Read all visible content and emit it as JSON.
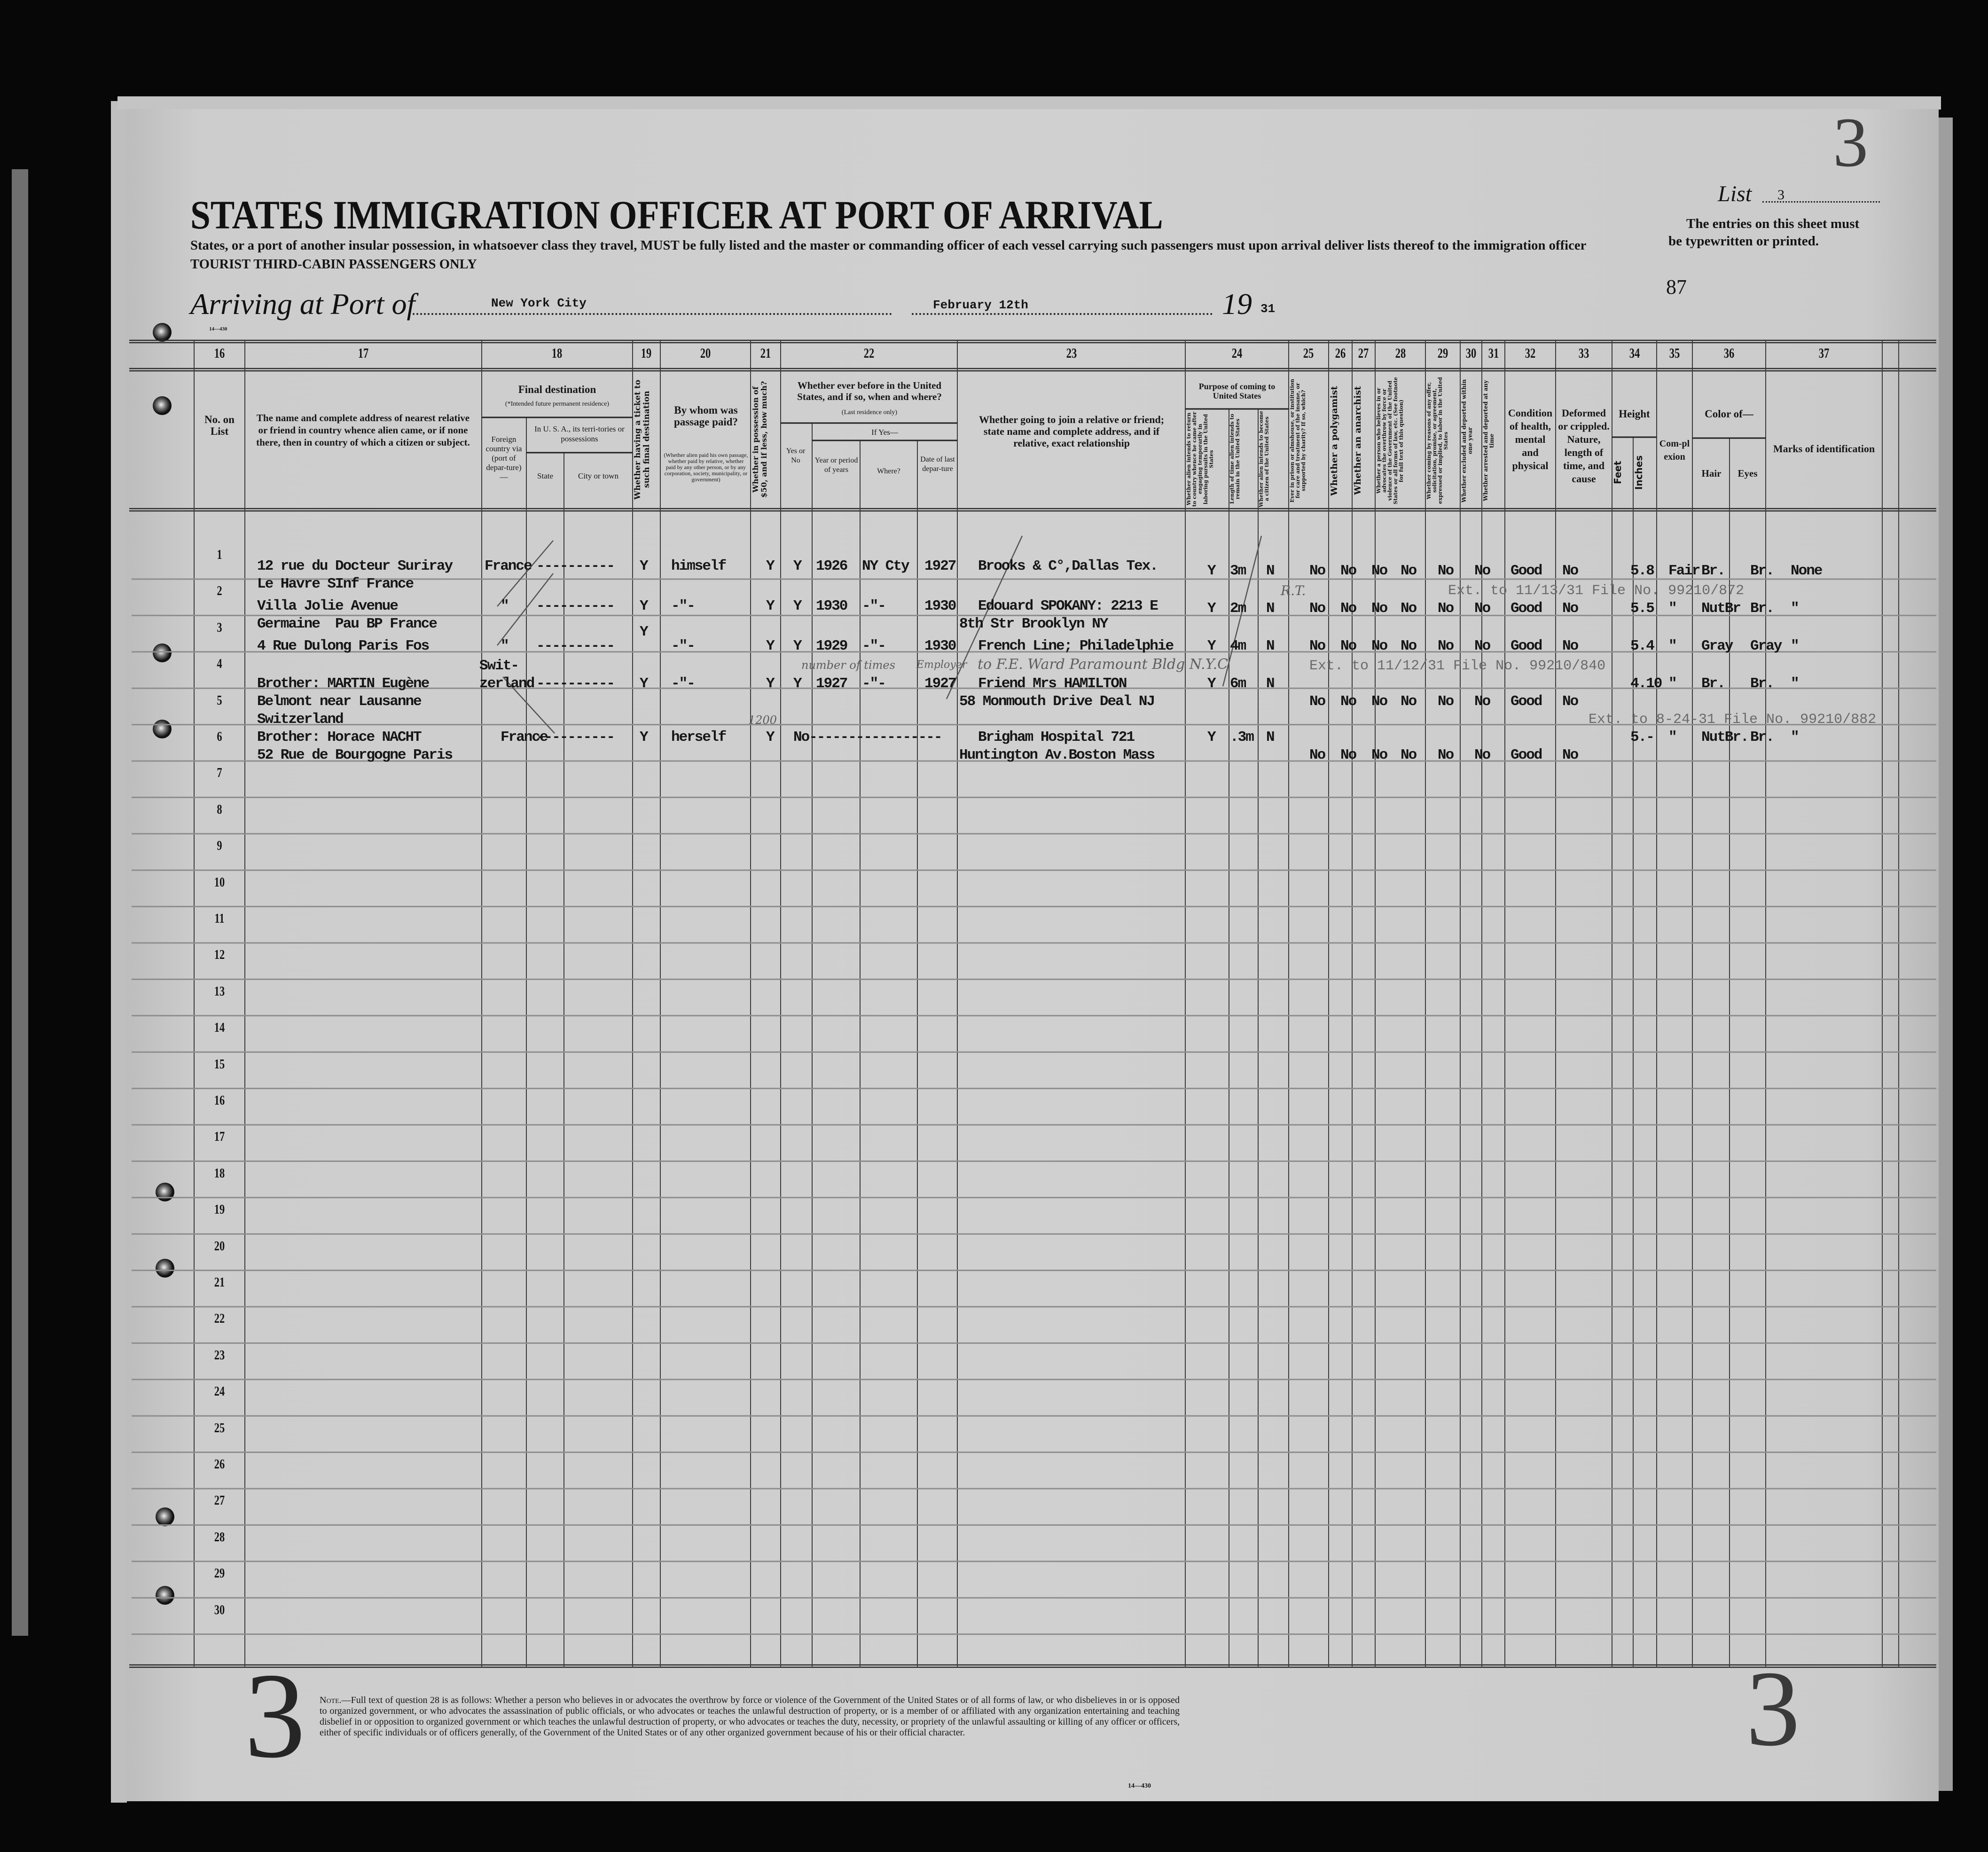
{
  "header": {
    "title": "STATES IMMIGRATION OFFICER AT PORT OF ARRIVAL",
    "subtitle": "States, or a port of another insular possession, in whatsoever class they travel, MUST be fully listed and the master or commanding officer of each vessel carrying such passengers must upon arrival deliver lists thereof to the immigration officer",
    "class_note": "TOURIST THIRD-CABIN PASSENGERS ONLY",
    "arriving_label": "Arriving at Port of",
    "port": "New York City",
    "date": "February 12th",
    "year_prefix": "19",
    "year_suffix": "31",
    "list_label": "List",
    "list_number": "3",
    "list_stamp": "3",
    "instruction_line1": "The entries on this sheet must",
    "instruction_line2": "be typewritten or printed.",
    "page_number": "87",
    "form_number": "14—430"
  },
  "columns": {
    "numbers": [
      "16",
      "17",
      "18",
      "19",
      "20",
      "21",
      "22",
      "23",
      "24",
      "25",
      "26",
      "27",
      "28",
      "29",
      "30",
      "31",
      "32",
      "33",
      "34",
      "35",
      "36",
      "37"
    ],
    "c16": "No. on List",
    "c17": "The name and complete address of nearest relative or friend in country whence alien came, or if none there, then in country of which a citizen or subject.",
    "c18_title": "Final destination",
    "c18_note": "(*Intended future permanent residence)",
    "c18_foreign": "Foreign country via (port of depar-ture)—",
    "c18_usa": "In U. S. A., its terri-tories or possessions",
    "c18_state": "State",
    "c18_city": "City or town",
    "c19": "Whether having a ticket to such final destination",
    "c20_title": "By whom was passage paid?",
    "c20_note": "(Whether alien paid his own passage, whether paid by relative, whether paid by any other person, or by any corporation, society, municipality, or government)",
    "c21": "Whether in possession of $50, and if less, how much?",
    "c22_title": "Whether ever before in the United States, and if so, when and where?",
    "c22_note": "(Last residence only)",
    "c22_ifyes": "If Yes—",
    "c22_yesno": "Yes or No",
    "c22_year": "Year or period of years",
    "c22_where": "Where?",
    "c22_date": "Date of last depar-ture",
    "c23": "Whether going to join a relative or friend; state name and complete address, and if relative, exact relationship",
    "c24_title": "Purpose of coming to United States",
    "c24_a": "Whether alien intends to return to country whence he came after engaging temporarily in laboring pursuits in the United States",
    "c24_b": "Length of time alien intends to remain in the United States",
    "c24_c": "Whether alien intends to become a citizen of the United States",
    "c25": "Ever in prison or almshouse, or institution for care and treatment of the insane, or supported by charity? If so, which?",
    "c26": "Whether a polygamist",
    "c27": "Whether an anarchist",
    "c28": "Whether a person who believes in or advocates the overthrow by force or violence of the Government of the United States or all forms of law, etc. (See footnote for full text of this question)",
    "c29": "Whether coming by reasons of any offer, solicitation, promise, or agreement, expressed or implied, to labor in the United States",
    "c30": "Whether excluded and deported within one year",
    "c31": "Whether arrested and deported at any time",
    "c32": "Condition of health, mental and physical",
    "c33": "Deformed or crippled. Nature, length of time, and cause",
    "c34_title": "Height",
    "c34_feet": "Feet",
    "c34_inches": "Inches",
    "c35": "Com-plexion",
    "c36_title": "Color of—",
    "c36_hair": "Hair",
    "c36_eyes": "Eyes",
    "c37": "Marks of identification"
  },
  "rows": [
    "1",
    "2",
    "3",
    "4",
    "5",
    "6",
    "7",
    "8",
    "9",
    "10",
    "11",
    "12",
    "13",
    "14",
    "15",
    "16",
    "17",
    "18",
    "19",
    "20",
    "21",
    "22",
    "23",
    "24",
    "25",
    "26",
    "27",
    "28",
    "29",
    "30"
  ],
  "records": [
    {
      "c17": [
        "12 rue du Docteur Suriray",
        "Le Havre SInf France"
      ],
      "c18_foreign": "France",
      "c18_city": "----------",
      "c19": "Y",
      "c20": "himself",
      "c21": "Y",
      "c22_yesno": "Y",
      "c22_year": "1926",
      "c22_where": "NY Cty",
      "c22_date": "1927",
      "c23": [
        "Brooks & C°,Dallas Tex."
      ],
      "c24_a": "Y",
      "c24_b": "3m",
      "c24_c": "N",
      "c25": "No",
      "c26": "No",
      "c27": "No",
      "c28": "No",
      "c29": "No",
      "c30": "No",
      "c32": "Good",
      "c33": "No",
      "c34": "5.8",
      "c35": "Fair",
      "c36_hair": "Br.",
      "c36_eyes": "Br.",
      "c37": "None"
    },
    {
      "c17": [
        "Villa Jolie Avenue",
        "Germaine  Pau BP France"
      ],
      "c18_foreign": "\"",
      "c18_city": "----------",
      "c19": "Y",
      "c20": "-\"-",
      "c21": "Y",
      "c22_yesno": "Y",
      "c22_year": "1930",
      "c22_where": "-\"-",
      "c22_date": "1930",
      "c23": [
        "Edouard SPOKANY: 2213 E",
        "8th Str Brooklyn NY"
      ],
      "c24_a": "Y",
      "c24_b": "2m",
      "c24_c": "N",
      "c25": "No",
      "c26": "No",
      "c27": "No",
      "c28": "No",
      "c29": "No",
      "c30": "No",
      "c32": "Good",
      "c33": "No",
      "c34": "5.5",
      "c35": "\"",
      "c36_hair": "NutBr",
      "c36_eyes": "Br.",
      "c37": "\""
    },
    {
      "c17": [
        "4 Rue Dulong Paris Fos"
      ],
      "c18_foreign": "\"",
      "c18_city": "----------",
      "c19": "Y",
      "c20": "-\"-",
      "c21": "Y",
      "c22_yesno": "Y",
      "c22_year": "1929",
      "c22_where": "-\"-",
      "c22_date": "1930",
      "c23": [
        "French Line; Philadelphie"
      ],
      "c24_a": "Y",
      "c24_b": "4m",
      "c24_c": "N",
      "c25": "No",
      "c26": "No",
      "c27": "No",
      "c28": "No",
      "c29": "No",
      "c30": "No",
      "c32": "Good",
      "c33": "No",
      "c34": "5.4",
      "c35": "\"",
      "c36_hair": "Gray",
      "c36_eyes": "Gray",
      "c37": "\""
    },
    {
      "c17": [
        "Brother: MARTIN Eugène",
        "Belmont near Lausanne",
        "Switzerland"
      ],
      "c18_foreign": "Swit-\nzerland",
      "c18_city": "----------",
      "c19": "Y",
      "c20": "-\"-",
      "c21": "Y",
      "c22_yesno": "Y",
      "c22_year": "1927",
      "c22_where": "-\"-",
      "c22_date": "1927",
      "c23": [
        "Friend Mrs HAMILTON",
        "58 Monmouth Drive Deal NJ"
      ],
      "c24_a": "Y",
      "c24_b": "6m",
      "c24_c": "N",
      "c25": "No",
      "c26": "No",
      "c27": "No",
      "c28": "No",
      "c29": "No",
      "c30": "No",
      "c32": "Good",
      "c33": "No",
      "c34": "4.10",
      "c35": "\"",
      "c36_hair": "Br.",
      "c36_eyes": "Br.",
      "c37": "\""
    },
    {
      "c17": [
        "Brother: Horace NACHT",
        "52 Rue de Bourgogne Paris"
      ],
      "c18_foreign": "France",
      "c18_city": "----------",
      "c19": "Y",
      "c20": "herself",
      "c21": "Y",
      "c22_yesno": "No-----------------",
      "c22_year": "",
      "c22_where": "",
      "c22_date": "",
      "c23": [
        "Brigham Hospital 721",
        "Huntington Av.Boston Mass"
      ],
      "c24_a": "Y",
      "c24_b": ".3m",
      "c24_c": "N",
      "c25": "No",
      "c26": "No",
      "c27": "No",
      "c28": "No",
      "c29": "No",
      "c30": "No",
      "c32": "Good",
      "c33": "No",
      "c34": "5.-",
      "c35": "\"",
      "c36_hair": "NutBr.",
      "c36_eyes": "Br.",
      "c37": "\""
    }
  ],
  "annotations": {
    "ext_1": "Ext. to 11/13/31  File No. 99210/872",
    "ext_2": "Ext. to 11/12/31  File No. 99210/840",
    "ext_3": "Ext. to 8-24-31  File No. 99210/882",
    "rt": "R.T.",
    "times": "number of times",
    "ward": "to F.E. Ward Paramount Bldg N.Y.C",
    "employer": "Employer",
    "amount": "1200"
  },
  "footer": {
    "note_label": "Note.",
    "note": "—Full text of question 28 is as follows: Whether a person who believes in or advocates the overthrow by force or violence of the Government of the United States or of all forms of law, or who disbelieves in or is opposed to organized government, or who advocates the assassination of public officials, or who advocates or teaches the unlawful destruction of property, or is a member of or affiliated with any organization entertaining and teaching disbelief in or opposition to organized government or which teaches the unlawful destruction of property, or who advocates or teaches the duty, necessity, or propriety of the unlawful assaulting or killing of any officer or officers, either of specific individuals or of officers generally, of the Government of the United States or of any other organized government because of his or their official character.",
    "form_number": "14—430",
    "stamp_left": "3",
    "stamp_right": "3"
  }
}
